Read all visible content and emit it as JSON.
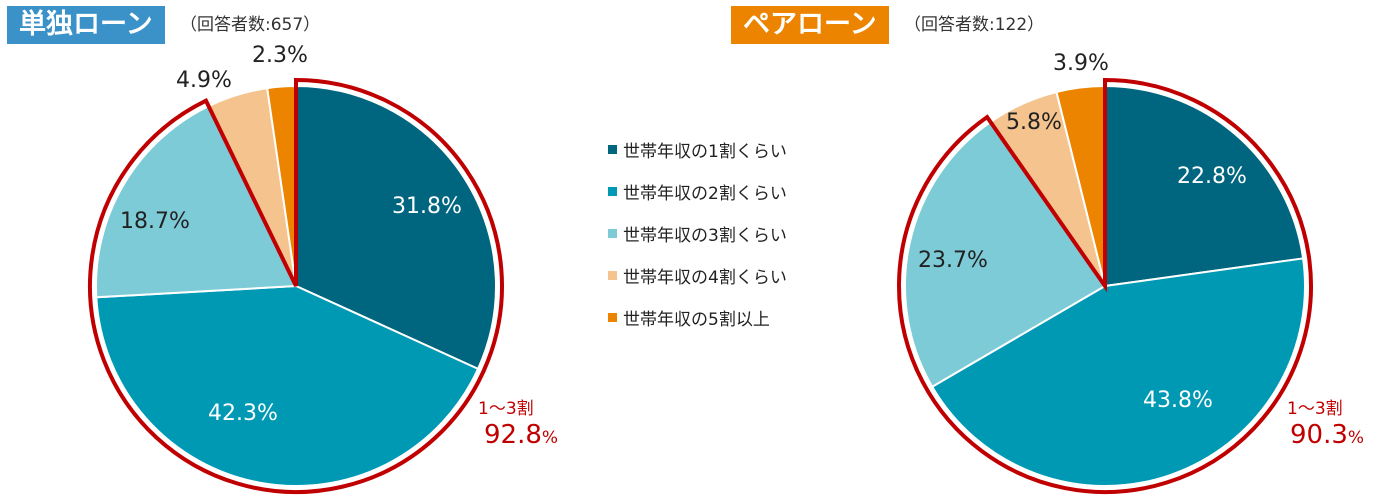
{
  "colors": [
    "#00667f",
    "#0099b4",
    "#7ecbd8",
    "#f5c48e",
    "#ec8400"
  ],
  "legend": [
    "世帯年収の1割くらい",
    "世帯年収の2割くらい",
    "世帯年収の3割くらい",
    "世帯年収の4割くらい",
    "世帯年収の5割以上"
  ],
  "chart_data": [
    {
      "type": "pie",
      "title": "単独ローン",
      "subtitle": "（回答者数:657）",
      "title_color": "#3a92c9",
      "categories": [
        "世帯年収の1割くらい",
        "世帯年収の2割くらい",
        "世帯年収の3割くらい",
        "世帯年収の4割くらい",
        "世帯年収の5割以上"
      ],
      "values": [
        31.8,
        42.3,
        18.7,
        4.9,
        2.3
      ],
      "value_labels": [
        "31.8%",
        "42.3%",
        "18.7%",
        "4.9%",
        "2.3%"
      ],
      "annotation": {
        "label": "1～3割",
        "value": "92.8",
        "unit": "%"
      }
    },
    {
      "type": "pie",
      "title": "ペアローン",
      "subtitle": "（回答者数:122）",
      "title_color": "#ec8400",
      "categories": [
        "世帯年収の1割くらい",
        "世帯年収の2割くらい",
        "世帯年収の3割くらい",
        "世帯年収の4割くらい",
        "世帯年収の5割以上"
      ],
      "values": [
        22.8,
        43.8,
        23.7,
        5.8,
        3.9
      ],
      "value_labels": [
        "22.8%",
        "43.8%",
        "23.7%",
        "5.8%",
        "3.9%"
      ],
      "annotation": {
        "label": "1～3割",
        "value": "90.3",
        "unit": "%"
      }
    }
  ]
}
